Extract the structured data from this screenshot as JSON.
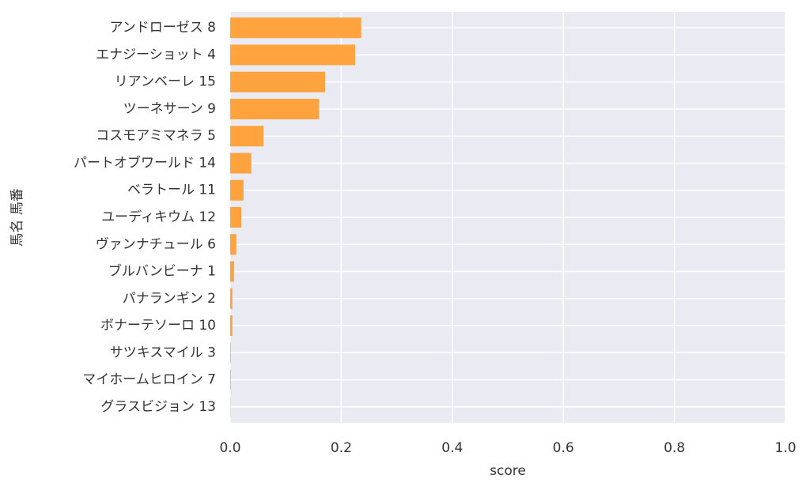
{
  "chart_data": {
    "type": "barh",
    "categories": [
      "アンドローゼス 8",
      "エナジーショット 4",
      "リアンベーレ 15",
      "ツーネサーン 9",
      "コスモアミマネラ 5",
      "パートオブワールド 14",
      "ベラトール 11",
      "ユーディキウム 12",
      "ヴァンナチュール 6",
      "ブルバンビーナ 1",
      "パナランギン 2",
      "ボナーテソーロ 10",
      "サツキスマイル 3",
      "マイホームヒロイン 7",
      "グラスビジョン 13"
    ],
    "values": [
      0.236,
      0.225,
      0.171,
      0.16,
      0.06,
      0.038,
      0.024,
      0.02,
      0.011,
      0.007,
      0.004,
      0.004,
      0.001,
      0.001,
      0.0005
    ],
    "color": "#ff9f33",
    "xlabel": "score",
    "ylabel": "馬名 馬番",
    "xlim": [
      0,
      1
    ],
    "xticks": [
      {
        "value": 0,
        "label": "0.0"
      },
      0.2,
      0.4,
      0.6,
      0.8,
      {
        "value": 1,
        "label": "1.0"
      }
    ],
    "grid": true
  }
}
